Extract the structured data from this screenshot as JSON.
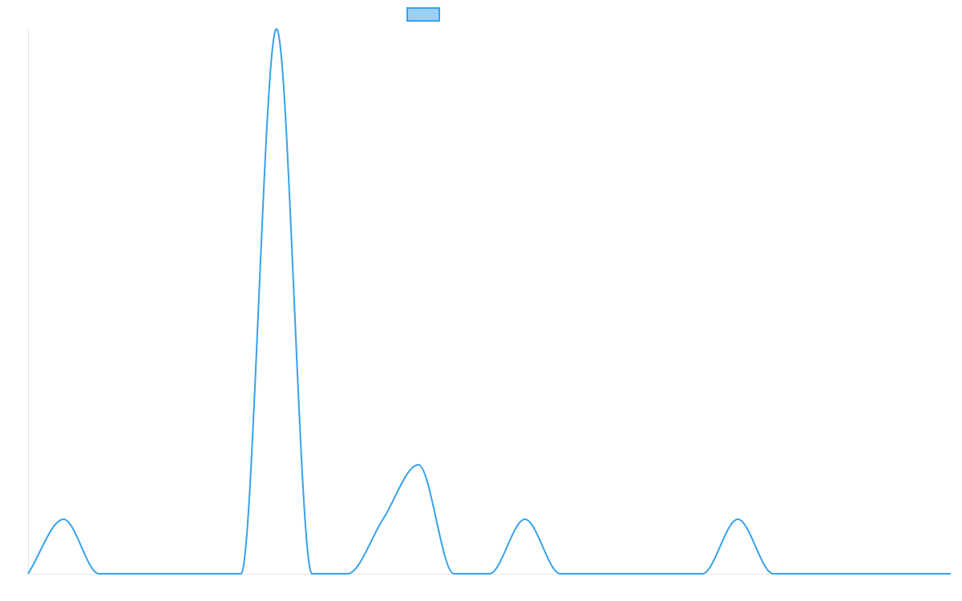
{
  "chart_data": {
    "type": "line",
    "x": [
      0,
      1,
      2,
      3,
      4,
      5,
      6,
      7,
      8,
      9,
      10,
      11,
      12,
      13,
      14,
      15,
      16,
      17,
      18,
      19,
      20,
      21,
      22,
      23,
      24,
      25,
      26
    ],
    "xlim": [
      0,
      26
    ],
    "ylim": [
      0,
      10
    ],
    "grid": false,
    "legend": "top-center",
    "series": [
      {
        "name": "",
        "color": "#36a2eb",
        "fill_color": "#9ad0f5",
        "values": [
          0,
          1,
          0,
          0,
          0,
          0,
          0,
          10,
          0,
          0,
          1,
          2,
          0,
          0,
          1,
          0,
          0,
          0,
          0,
          0,
          1,
          0,
          0,
          0,
          0,
          0,
          0
        ]
      }
    ]
  }
}
